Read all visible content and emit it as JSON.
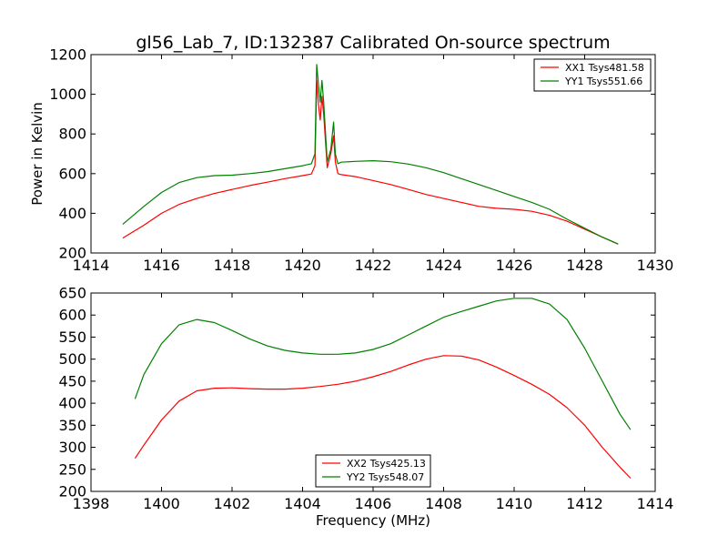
{
  "chart_data": [
    {
      "type": "line",
      "title": "gl56_Lab_7, ID:132387 Calibrated On-source spectrum",
      "xlabel": "",
      "ylabel": "Power in Kelvin",
      "xlim": [
        1414,
        1430
      ],
      "ylim": [
        200,
        1200
      ],
      "xticks": [
        1414,
        1416,
        1418,
        1420,
        1422,
        1424,
        1426,
        1428,
        1430
      ],
      "yticks": [
        200,
        400,
        600,
        800,
        1000,
        1200
      ],
      "legend_position": "top-right",
      "grid": false,
      "series": [
        {
          "name": "XX1 Tsys481.58",
          "color": "#ff0000",
          "x": [
            1414.9,
            1415.5,
            1416.0,
            1416.5,
            1417.0,
            1417.5,
            1418.0,
            1418.5,
            1419.0,
            1419.5,
            1420.0,
            1420.25,
            1420.35,
            1420.4,
            1420.45,
            1420.5,
            1420.55,
            1420.6,
            1420.7,
            1420.8,
            1420.88,
            1420.93,
            1421.0,
            1421.1,
            1421.5,
            1422.0,
            1422.5,
            1423.0,
            1423.5,
            1424.0,
            1424.5,
            1425.0,
            1425.5,
            1426.0,
            1426.5,
            1427.0,
            1427.5,
            1428.0,
            1428.5,
            1428.95
          ],
          "y": [
            275,
            340,
            400,
            445,
            475,
            500,
            520,
            540,
            557,
            575,
            590,
            598,
            640,
            1070,
            950,
            870,
            990,
            900,
            630,
            700,
            790,
            660,
            600,
            595,
            585,
            565,
            545,
            520,
            495,
            475,
            455,
            435,
            425,
            420,
            410,
            390,
            360,
            320,
            280,
            245
          ]
        },
        {
          "name": "YY1 Tsys551.66",
          "color": "#008000",
          "x": [
            1414.9,
            1415.5,
            1416.0,
            1416.5,
            1417.0,
            1417.5,
            1418.0,
            1418.5,
            1419.0,
            1419.5,
            1420.0,
            1420.25,
            1420.35,
            1420.4,
            1420.45,
            1420.5,
            1420.55,
            1420.6,
            1420.7,
            1420.8,
            1420.88,
            1420.93,
            1421.0,
            1421.1,
            1421.5,
            1422.0,
            1422.5,
            1423.0,
            1423.5,
            1424.0,
            1424.5,
            1425.0,
            1425.5,
            1426.0,
            1426.5,
            1427.0,
            1427.5,
            1428.0,
            1428.5,
            1428.95
          ],
          "y": [
            345,
            435,
            505,
            555,
            580,
            590,
            592,
            600,
            610,
            625,
            640,
            650,
            700,
            1150,
            1050,
            960,
            1070,
            960,
            660,
            720,
            860,
            700,
            650,
            658,
            662,
            665,
            660,
            648,
            630,
            605,
            575,
            545,
            515,
            485,
            455,
            420,
            370,
            325,
            280,
            245
          ]
        }
      ]
    },
    {
      "type": "line",
      "title": "",
      "xlabel": "Frequency (MHz)",
      "ylabel": "",
      "xlim": [
        1398,
        1414
      ],
      "ylim": [
        200,
        650
      ],
      "xticks": [
        1398,
        1400,
        1402,
        1404,
        1406,
        1408,
        1410,
        1412,
        1414
      ],
      "yticks": [
        200,
        250,
        300,
        350,
        400,
        450,
        500,
        550,
        600,
        650
      ],
      "legend_position": "bottom-center",
      "grid": false,
      "series": [
        {
          "name": "XX2 Tsys425.13",
          "color": "#ff0000",
          "x": [
            1399.25,
            1399.5,
            1400.0,
            1400.5,
            1401.0,
            1401.5,
            1402.0,
            1402.5,
            1403.0,
            1403.5,
            1404.0,
            1404.5,
            1405.0,
            1405.5,
            1406.0,
            1406.5,
            1407.0,
            1407.5,
            1408.0,
            1408.5,
            1409.0,
            1409.5,
            1410.0,
            1410.5,
            1411.0,
            1411.5,
            1412.0,
            1412.5,
            1413.0,
            1413.3
          ],
          "y": [
            275,
            305,
            362,
            405,
            428,
            434,
            435,
            433,
            432,
            432,
            434,
            438,
            443,
            450,
            460,
            472,
            487,
            500,
            508,
            507,
            498,
            482,
            463,
            443,
            420,
            390,
            350,
            300,
            255,
            230
          ]
        },
        {
          "name": "YY2 Tsys548.07",
          "color": "#008000",
          "x": [
            1399.25,
            1399.5,
            1400.0,
            1400.5,
            1401.0,
            1401.5,
            1402.0,
            1402.5,
            1403.0,
            1403.5,
            1404.0,
            1404.5,
            1405.0,
            1405.5,
            1406.0,
            1406.5,
            1407.0,
            1407.5,
            1408.0,
            1408.5,
            1409.0,
            1409.5,
            1410.0,
            1410.5,
            1411.0,
            1411.5,
            1412.0,
            1412.5,
            1413.0,
            1413.3
          ],
          "y": [
            410,
            465,
            535,
            578,
            590,
            583,
            565,
            546,
            530,
            520,
            514,
            511,
            511,
            514,
            522,
            535,
            555,
            575,
            595,
            608,
            620,
            632,
            638,
            638,
            625,
            590,
            525,
            450,
            375,
            340
          ]
        }
      ]
    }
  ]
}
